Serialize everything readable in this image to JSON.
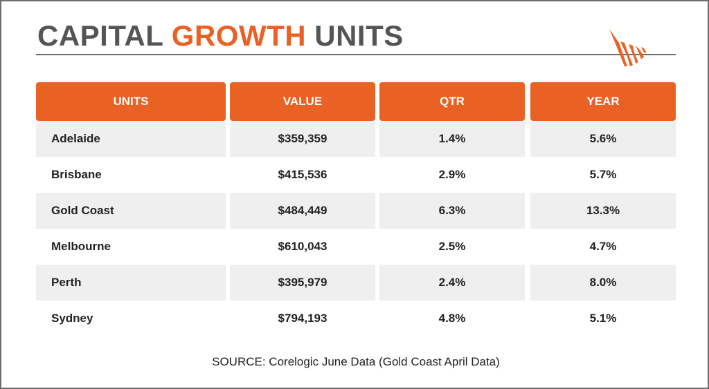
{
  "title": {
    "part1": "CAPITAL",
    "part2": "GROWTH",
    "part3": "UNITS"
  },
  "colors": {
    "accent": "#ea6124",
    "text_gray": "#555555",
    "row_shade": "#efefef"
  },
  "logo": {
    "icon": "orange-stripes-logo-icon"
  },
  "table": {
    "headers": [
      "UNITS",
      "VALUE",
      "QTR",
      "YEAR"
    ],
    "rows": [
      [
        "Adelaide",
        "$359,359",
        "1.4%",
        "5.6%"
      ],
      [
        "Brisbane",
        "$415,536",
        "2.9%",
        "5.7%"
      ],
      [
        "Gold Coast",
        "$484,449",
        "6.3%",
        "13.3%"
      ],
      [
        "Melbourne",
        "$610,043",
        "2.5%",
        "4.7%"
      ],
      [
        "Perth",
        "$395,979",
        "2.4%",
        "8.0%"
      ],
      [
        "Sydney",
        "$794,193",
        "4.8%",
        "5.1%"
      ]
    ]
  },
  "chart_data": {
    "type": "table",
    "title": "CAPITAL GROWTH UNITS",
    "columns": [
      "UNITS",
      "VALUE",
      "QTR",
      "YEAR"
    ],
    "rows": [
      {
        "UNITS": "Adelaide",
        "VALUE": 359359,
        "QTR": 1.4,
        "YEAR": 5.6
      },
      {
        "UNITS": "Brisbane",
        "VALUE": 415536,
        "QTR": 2.9,
        "YEAR": 5.7
      },
      {
        "UNITS": "Gold Coast",
        "VALUE": 484449,
        "QTR": 6.3,
        "YEAR": 13.3
      },
      {
        "UNITS": "Melbourne",
        "VALUE": 610043,
        "QTR": 2.5,
        "YEAR": 4.7
      },
      {
        "UNITS": "Perth",
        "VALUE": 395979,
        "QTR": 2.4,
        "YEAR": 8.0
      },
      {
        "UNITS": "Sydney",
        "VALUE": 794193,
        "QTR": 4.8,
        "YEAR": 5.1
      }
    ],
    "annotations": [
      "SOURCE: Corelogic June Data (Gold Coast April Data)"
    ]
  },
  "source": "SOURCE: Corelogic June Data (Gold Coast April Data)"
}
